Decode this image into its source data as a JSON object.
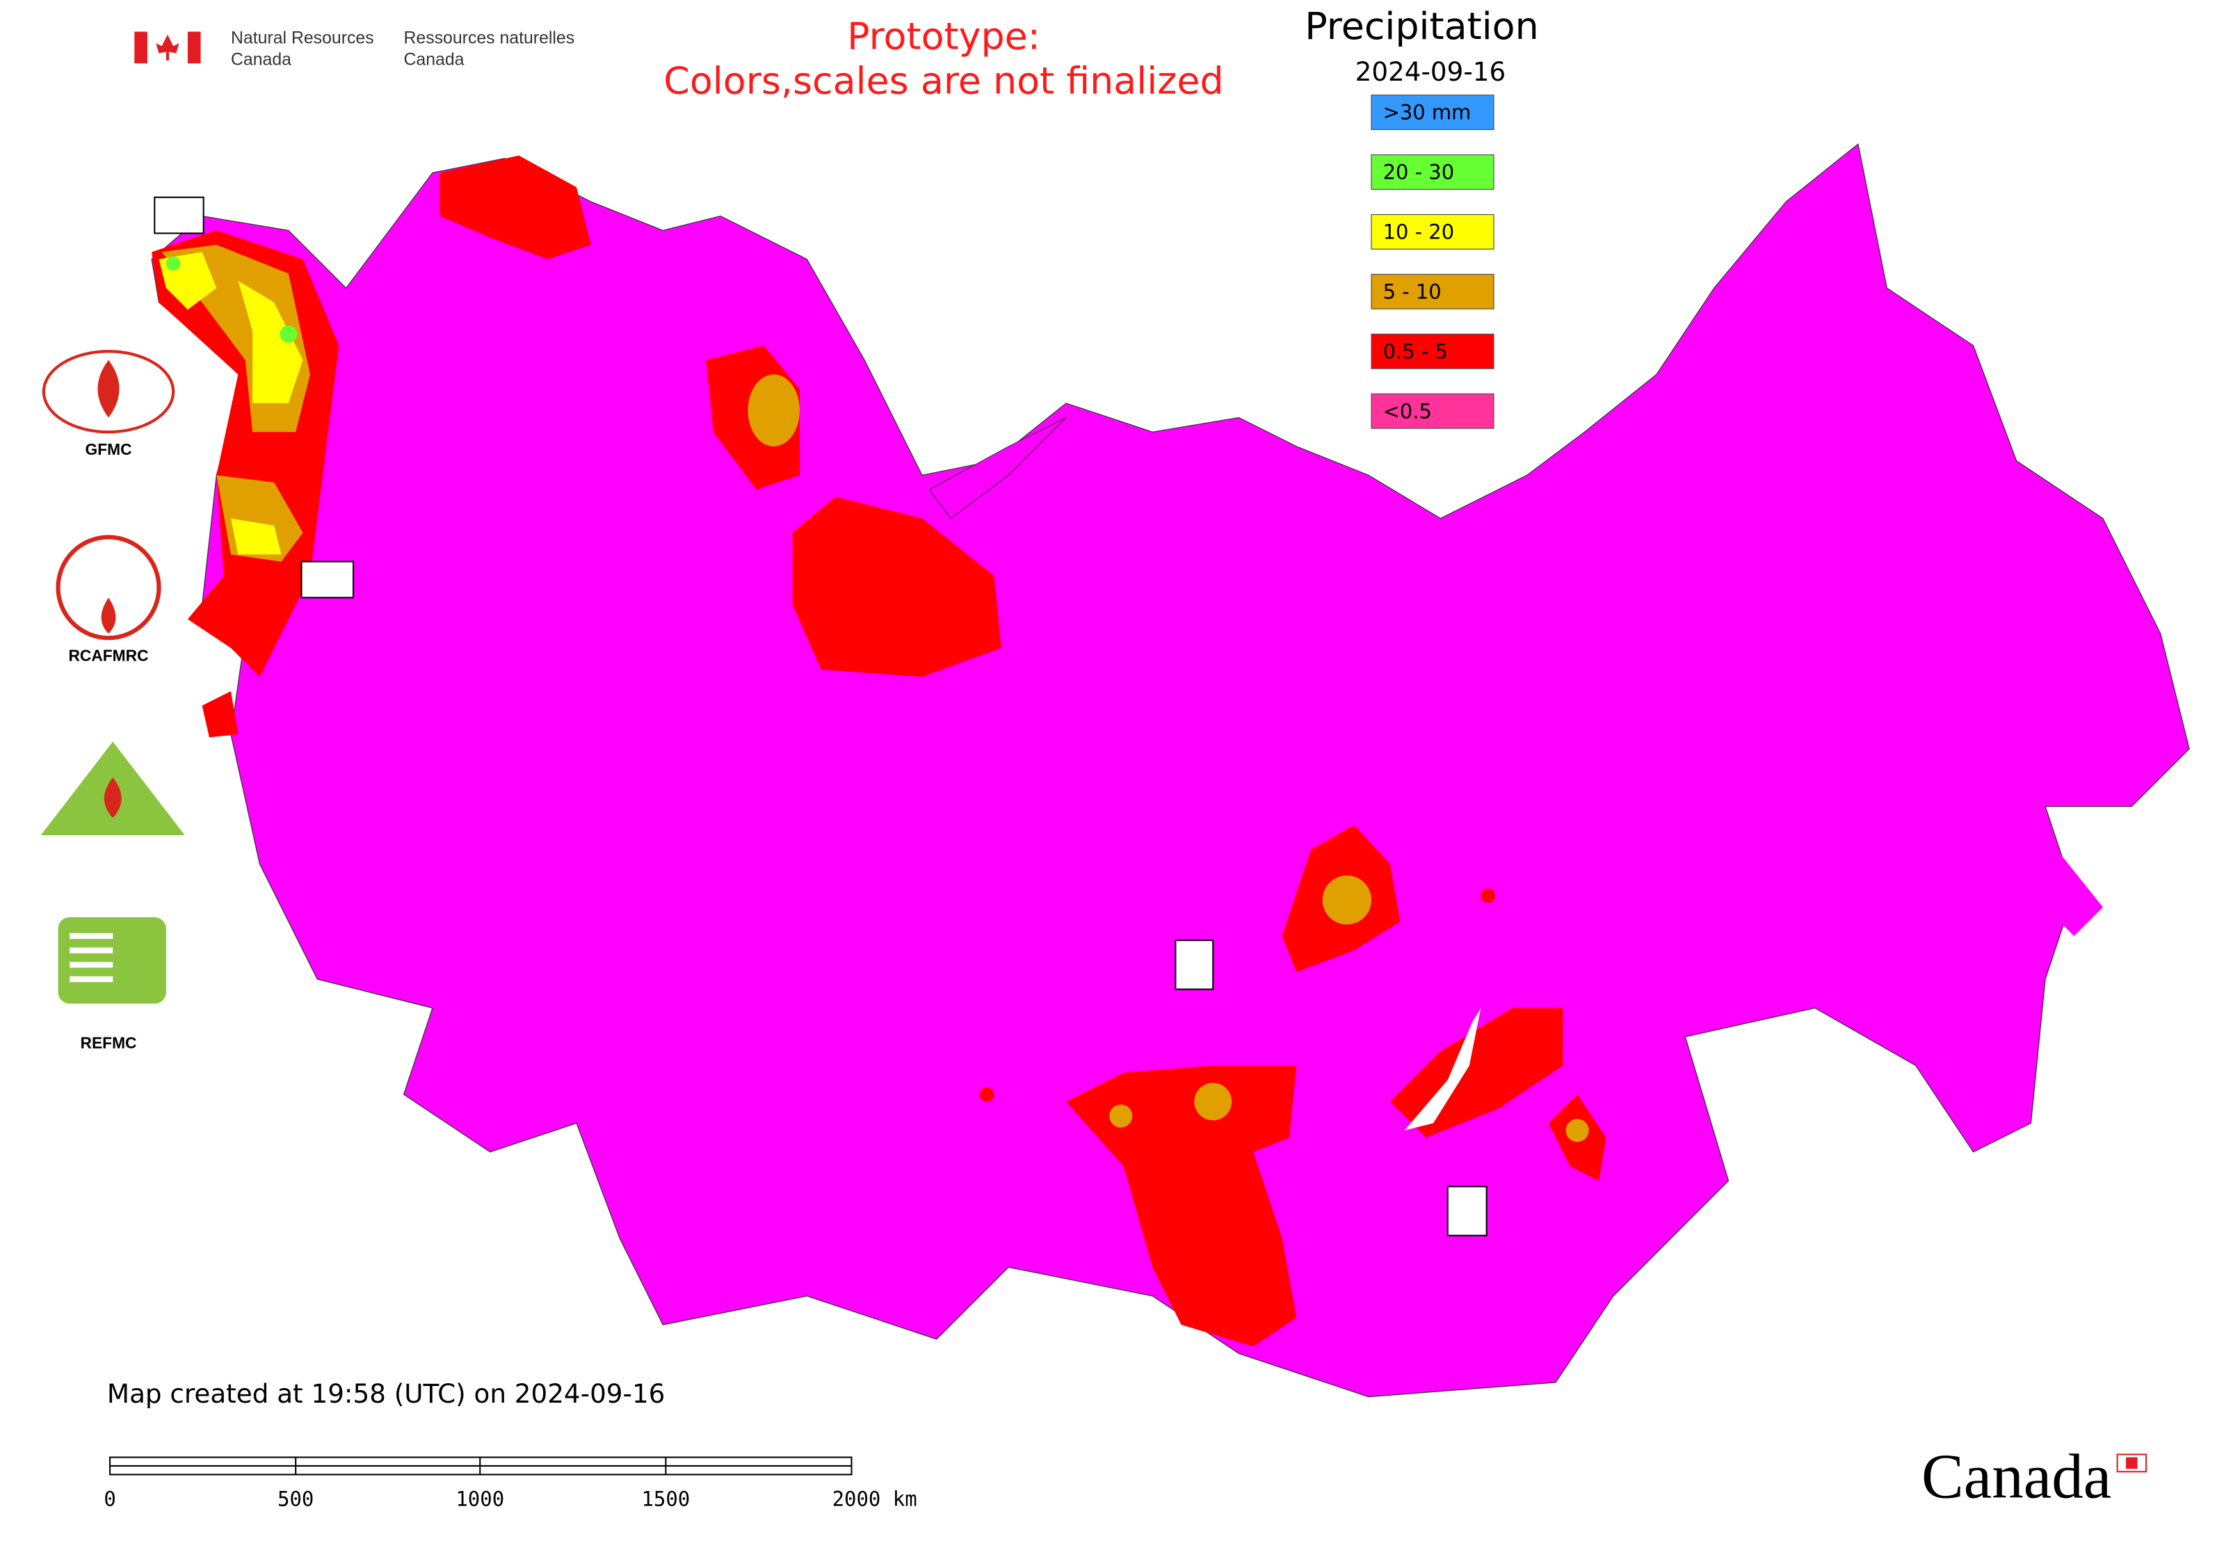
{
  "header": {
    "org_en": [
      "Natural Resources",
      "Canada"
    ],
    "org_fr": [
      "Ressources naturelles",
      "Canada"
    ],
    "prototype_note": [
      "Prototype:",
      "Colors,scales are not finalized"
    ]
  },
  "legend": {
    "title": "Precipitation",
    "date": "2024-09-16",
    "items": [
      {
        "label": ">30 mm",
        "color": "#3399ff"
      },
      {
        "label": "20 - 30",
        "color": "#66ff33"
      },
      {
        "label": "10 - 20",
        "color": "#ffff00"
      },
      {
        "label": "5 - 10",
        "color": "#e0a000"
      },
      {
        "label": "0.5 - 5",
        "color": "#ff0000"
      },
      {
        "label": "<0.5",
        "color": "#ff3399"
      }
    ]
  },
  "logos": [
    "GFMC",
    "RCAFMRC",
    "REFMC"
  ],
  "footer": {
    "created": "Map created at 19:58 (UTC) on 2024-09-16",
    "scale_labels": [
      "0",
      "500",
      "1000",
      "1500",
      "2000 km"
    ],
    "wordmark": "Canada"
  }
}
